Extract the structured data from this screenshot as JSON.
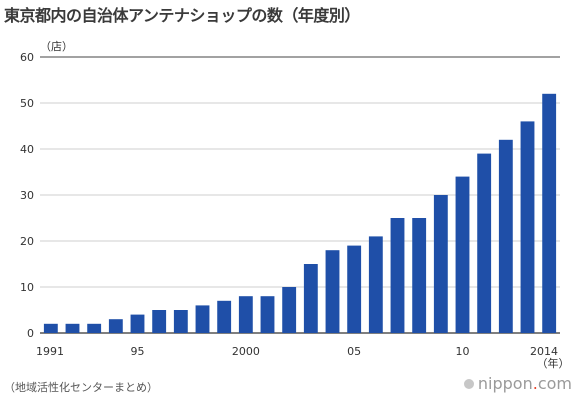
{
  "page": {
    "title": "東京都内の自治体アンテナショップの数（年度別）",
    "source": "（地域活性化センターまとめ）",
    "brand": {
      "name": "nippon",
      "dot": ".",
      "tld": "com"
    }
  },
  "colors": {
    "bar": "#1f4fa8",
    "grid": "#cfcfcf",
    "axis": "#333333",
    "text": "#333333"
  },
  "chart_data": {
    "type": "bar",
    "title": "東京都内の自治体アンテナショップの数（年度別）",
    "y_unit_label": "（店）",
    "x_unit_label": "（年）",
    "categories": [
      "1991",
      "1992",
      "1993",
      "1994",
      "1995",
      "1996",
      "1997",
      "1998",
      "1999",
      "2000",
      "2001",
      "2002",
      "2003",
      "2004",
      "2005",
      "2006",
      "2007",
      "2008",
      "2009",
      "2010",
      "2011",
      "2012",
      "2013",
      "2014"
    ],
    "x_tick_labels": [
      {
        "category": "1991",
        "label": "1991"
      },
      {
        "category": "1995",
        "label": "95"
      },
      {
        "category": "2000",
        "label": "2000"
      },
      {
        "category": "2005",
        "label": "05"
      },
      {
        "category": "2010",
        "label": "10"
      },
      {
        "category": "2014",
        "label": "2014"
      }
    ],
    "series": [
      {
        "values": [
          2,
          2,
          2,
          3,
          4,
          5,
          5,
          6,
          7,
          8,
          8,
          10,
          15,
          18,
          19,
          21,
          25,
          25,
          30,
          34,
          39,
          42,
          46,
          52
        ]
      }
    ],
    "ylim": [
      0,
      60
    ],
    "yticks": [
      0,
      10,
      20,
      30,
      40,
      50,
      60
    ],
    "grid": true,
    "legend": "none"
  }
}
